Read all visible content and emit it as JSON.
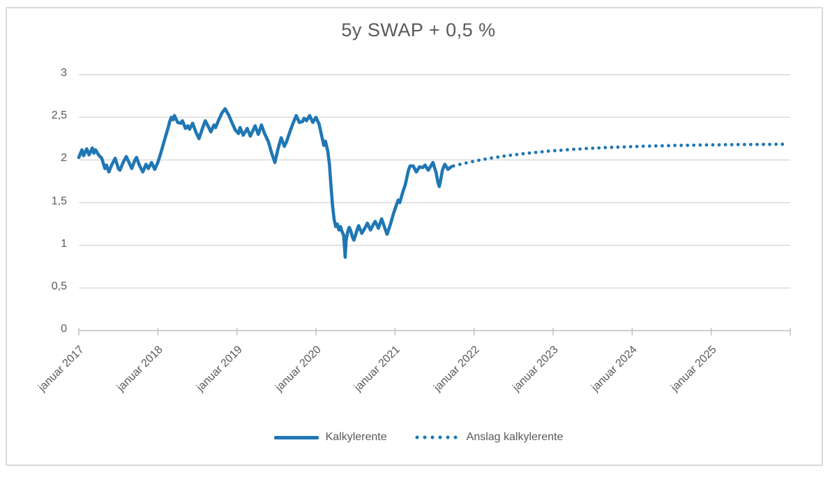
{
  "chart_data": {
    "type": "line",
    "title": "5y SWAP + 0,5 %",
    "xlabel": "",
    "ylabel": "",
    "x_unit": "year",
    "xlim": [
      2017,
      2026
    ],
    "ylim": [
      0,
      3
    ],
    "grid": "horizontal",
    "legend_position": "bottom",
    "colors": {
      "series": "#1f77b4",
      "gridline": "#d9d9d9",
      "axis": "#bfbfbf",
      "text": "#595959",
      "frame_border": "#d9d9d9"
    },
    "y_axis": {
      "tick_values": [
        0,
        0.5,
        1,
        1.5,
        2,
        2.5,
        3
      ],
      "tick_labels": [
        "0",
        "0,5",
        "1",
        "1,5",
        "2",
        "2,5",
        "3"
      ]
    },
    "x_axis": {
      "tick_values": [
        2017,
        2018,
        2019,
        2020,
        2021,
        2022,
        2023,
        2024,
        2025
      ],
      "tick_labels": [
        "januar 2017",
        "januar 2018",
        "januar 2019",
        "januar 2020",
        "januar 2021",
        "januar 2022",
        "januar 2023",
        "januar 2024",
        "januar 2025"
      ],
      "label_rotation_deg": 45
    },
    "series": [
      {
        "name": "Kalkylerente",
        "style": "solid",
        "points": [
          [
            2017.0,
            2.03
          ],
          [
            2017.04,
            2.12
          ],
          [
            2017.06,
            2.05
          ],
          [
            2017.1,
            2.13
          ],
          [
            2017.13,
            2.06
          ],
          [
            2017.17,
            2.14
          ],
          [
            2017.19,
            2.08
          ],
          [
            2017.21,
            2.12
          ],
          [
            2017.25,
            2.06
          ],
          [
            2017.29,
            2.02
          ],
          [
            2017.33,
            1.9
          ],
          [
            2017.35,
            1.94
          ],
          [
            2017.38,
            1.86
          ],
          [
            2017.42,
            1.95
          ],
          [
            2017.46,
            2.02
          ],
          [
            2017.5,
            1.9
          ],
          [
            2017.52,
            1.88
          ],
          [
            2017.56,
            1.97
          ],
          [
            2017.6,
            2.04
          ],
          [
            2017.65,
            1.94
          ],
          [
            2017.67,
            1.9
          ],
          [
            2017.71,
            2.0
          ],
          [
            2017.73,
            2.03
          ],
          [
            2017.77,
            1.93
          ],
          [
            2017.81,
            1.86
          ],
          [
            2017.85,
            1.95
          ],
          [
            2017.88,
            1.9
          ],
          [
            2017.92,
            1.97
          ],
          [
            2017.96,
            1.89
          ],
          [
            2018.0,
            1.97
          ],
          [
            2018.04,
            2.09
          ],
          [
            2018.08,
            2.22
          ],
          [
            2018.13,
            2.38
          ],
          [
            2018.15,
            2.45
          ],
          [
            2018.17,
            2.5
          ],
          [
            2018.19,
            2.47
          ],
          [
            2018.21,
            2.52
          ],
          [
            2018.25,
            2.44
          ],
          [
            2018.29,
            2.43
          ],
          [
            2018.31,
            2.46
          ],
          [
            2018.35,
            2.37
          ],
          [
            2018.38,
            2.4
          ],
          [
            2018.4,
            2.36
          ],
          [
            2018.44,
            2.43
          ],
          [
            2018.48,
            2.33
          ],
          [
            2018.52,
            2.25
          ],
          [
            2018.56,
            2.36
          ],
          [
            2018.6,
            2.46
          ],
          [
            2018.65,
            2.37
          ],
          [
            2018.67,
            2.33
          ],
          [
            2018.71,
            2.41
          ],
          [
            2018.73,
            2.38
          ],
          [
            2018.77,
            2.47
          ],
          [
            2018.81,
            2.55
          ],
          [
            2018.85,
            2.6
          ],
          [
            2018.9,
            2.52
          ],
          [
            2018.94,
            2.43
          ],
          [
            2018.98,
            2.35
          ],
          [
            2019.02,
            2.31
          ],
          [
            2019.04,
            2.38
          ],
          [
            2019.08,
            2.29
          ],
          [
            2019.13,
            2.37
          ],
          [
            2019.17,
            2.28
          ],
          [
            2019.21,
            2.36
          ],
          [
            2019.23,
            2.4
          ],
          [
            2019.27,
            2.3
          ],
          [
            2019.31,
            2.41
          ],
          [
            2019.35,
            2.31
          ],
          [
            2019.4,
            2.21
          ],
          [
            2019.44,
            2.08
          ],
          [
            2019.48,
            1.97
          ],
          [
            2019.52,
            2.13
          ],
          [
            2019.56,
            2.26
          ],
          [
            2019.6,
            2.16
          ],
          [
            2019.63,
            2.22
          ],
          [
            2019.67,
            2.33
          ],
          [
            2019.71,
            2.43
          ],
          [
            2019.75,
            2.52
          ],
          [
            2019.79,
            2.44
          ],
          [
            2019.83,
            2.45
          ],
          [
            2019.85,
            2.49
          ],
          [
            2019.88,
            2.46
          ],
          [
            2019.92,
            2.52
          ],
          [
            2019.96,
            2.44
          ],
          [
            2020.0,
            2.5
          ],
          [
            2020.04,
            2.42
          ],
          [
            2020.08,
            2.25
          ],
          [
            2020.1,
            2.17
          ],
          [
            2020.12,
            2.22
          ],
          [
            2020.15,
            2.1
          ],
          [
            2020.17,
            1.95
          ],
          [
            2020.19,
            1.7
          ],
          [
            2020.21,
            1.46
          ],
          [
            2020.23,
            1.3
          ],
          [
            2020.25,
            1.22
          ],
          [
            2020.27,
            1.25
          ],
          [
            2020.29,
            1.18
          ],
          [
            2020.31,
            1.22
          ],
          [
            2020.33,
            1.16
          ],
          [
            2020.35,
            1.12
          ],
          [
            2020.37,
            0.86
          ],
          [
            2020.38,
            1.05
          ],
          [
            2020.4,
            1.15
          ],
          [
            2020.42,
            1.21
          ],
          [
            2020.44,
            1.17
          ],
          [
            2020.46,
            1.1
          ],
          [
            2020.48,
            1.06
          ],
          [
            2020.5,
            1.12
          ],
          [
            2020.52,
            1.18
          ],
          [
            2020.54,
            1.23
          ],
          [
            2020.58,
            1.14
          ],
          [
            2020.63,
            1.22
          ],
          [
            2020.65,
            1.26
          ],
          [
            2020.69,
            1.18
          ],
          [
            2020.73,
            1.25
          ],
          [
            2020.75,
            1.28
          ],
          [
            2020.79,
            1.2
          ],
          [
            2020.83,
            1.31
          ],
          [
            2020.88,
            1.18
          ],
          [
            2020.9,
            1.13
          ],
          [
            2020.94,
            1.24
          ],
          [
            2020.98,
            1.37
          ],
          [
            2021.02,
            1.48
          ],
          [
            2021.04,
            1.53
          ],
          [
            2021.06,
            1.5
          ],
          [
            2021.1,
            1.63
          ],
          [
            2021.13,
            1.71
          ],
          [
            2021.17,
            1.88
          ],
          [
            2021.19,
            1.93
          ],
          [
            2021.23,
            1.93
          ],
          [
            2021.27,
            1.86
          ],
          [
            2021.31,
            1.92
          ],
          [
            2021.35,
            1.91
          ],
          [
            2021.38,
            1.94
          ],
          [
            2021.42,
            1.88
          ],
          [
            2021.46,
            1.94
          ],
          [
            2021.48,
            1.97
          ],
          [
            2021.52,
            1.85
          ],
          [
            2021.54,
            1.75
          ],
          [
            2021.56,
            1.69
          ],
          [
            2021.58,
            1.78
          ],
          [
            2021.6,
            1.88
          ],
          [
            2021.63,
            1.95
          ],
          [
            2021.67,
            1.89
          ],
          [
            2021.71,
            1.92
          ]
        ]
      },
      {
        "name": "Anslag kalkylerente",
        "style": "dotted",
        "points": [
          [
            2021.74,
            1.93
          ],
          [
            2021.82,
            1.948
          ],
          [
            2021.9,
            1.965
          ],
          [
            2021.98,
            1.981
          ],
          [
            2022.06,
            1.996
          ],
          [
            2022.14,
            2.009
          ],
          [
            2022.22,
            2.022
          ],
          [
            2022.3,
            2.034
          ],
          [
            2022.38,
            2.045
          ],
          [
            2022.46,
            2.055
          ],
          [
            2022.54,
            2.064
          ],
          [
            2022.62,
            2.073
          ],
          [
            2022.7,
            2.081
          ],
          [
            2022.78,
            2.089
          ],
          [
            2022.86,
            2.096
          ],
          [
            2022.94,
            2.103
          ],
          [
            2023.02,
            2.109
          ],
          [
            2023.1,
            2.114
          ],
          [
            2023.18,
            2.12
          ],
          [
            2023.26,
            2.125
          ],
          [
            2023.34,
            2.129
          ],
          [
            2023.42,
            2.134
          ],
          [
            2023.5,
            2.138
          ],
          [
            2023.58,
            2.141
          ],
          [
            2023.66,
            2.145
          ],
          [
            2023.74,
            2.148
          ],
          [
            2023.82,
            2.151
          ],
          [
            2023.9,
            2.153
          ],
          [
            2023.98,
            2.156
          ],
          [
            2024.06,
            2.158
          ],
          [
            2024.14,
            2.161
          ],
          [
            2024.22,
            2.163
          ],
          [
            2024.3,
            2.165
          ],
          [
            2024.38,
            2.166
          ],
          [
            2024.46,
            2.168
          ],
          [
            2024.54,
            2.17
          ],
          [
            2024.62,
            2.171
          ],
          [
            2024.7,
            2.172
          ],
          [
            2024.78,
            2.174
          ],
          [
            2024.86,
            2.175
          ],
          [
            2024.94,
            2.176
          ],
          [
            2025.02,
            2.177
          ],
          [
            2025.1,
            2.178
          ],
          [
            2025.18,
            2.179
          ],
          [
            2025.26,
            2.179
          ],
          [
            2025.34,
            2.18
          ],
          [
            2025.42,
            2.181
          ],
          [
            2025.5,
            2.181
          ],
          [
            2025.58,
            2.182
          ],
          [
            2025.66,
            2.183
          ],
          [
            2025.74,
            2.183
          ],
          [
            2025.82,
            2.184
          ],
          [
            2025.9,
            2.184
          ]
        ]
      }
    ]
  }
}
